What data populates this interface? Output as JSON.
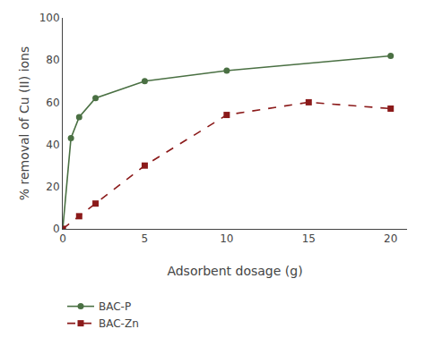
{
  "chart_data": {
    "type": "line",
    "xlabel": "Adsorbent dosage (g)",
    "ylabel": "% removal of Cu (II) ions",
    "series": [
      {
        "name": "BAC-P",
        "x": [
          0,
          0.5,
          1,
          2,
          5,
          10,
          20
        ],
        "values": [
          0,
          43,
          53,
          62,
          70,
          75,
          82
        ],
        "color": "#4a7043",
        "marker": "circle",
        "line_style": "solid"
      },
      {
        "name": "BAC-Zn",
        "x": [
          0,
          1,
          2,
          5,
          10,
          15,
          20
        ],
        "values": [
          0,
          6,
          12,
          30,
          54,
          60,
          57
        ],
        "color": "#8b1a1a",
        "marker": "square",
        "line_style": "dashed"
      }
    ],
    "xlim": [
      0,
      21
    ],
    "ylim": [
      0,
      100
    ],
    "xticks": [
      0,
      5,
      10,
      15,
      20
    ],
    "yticks": [
      0,
      20,
      40,
      60,
      80,
      100
    ],
    "grid": false,
    "legend": "bottom"
  }
}
